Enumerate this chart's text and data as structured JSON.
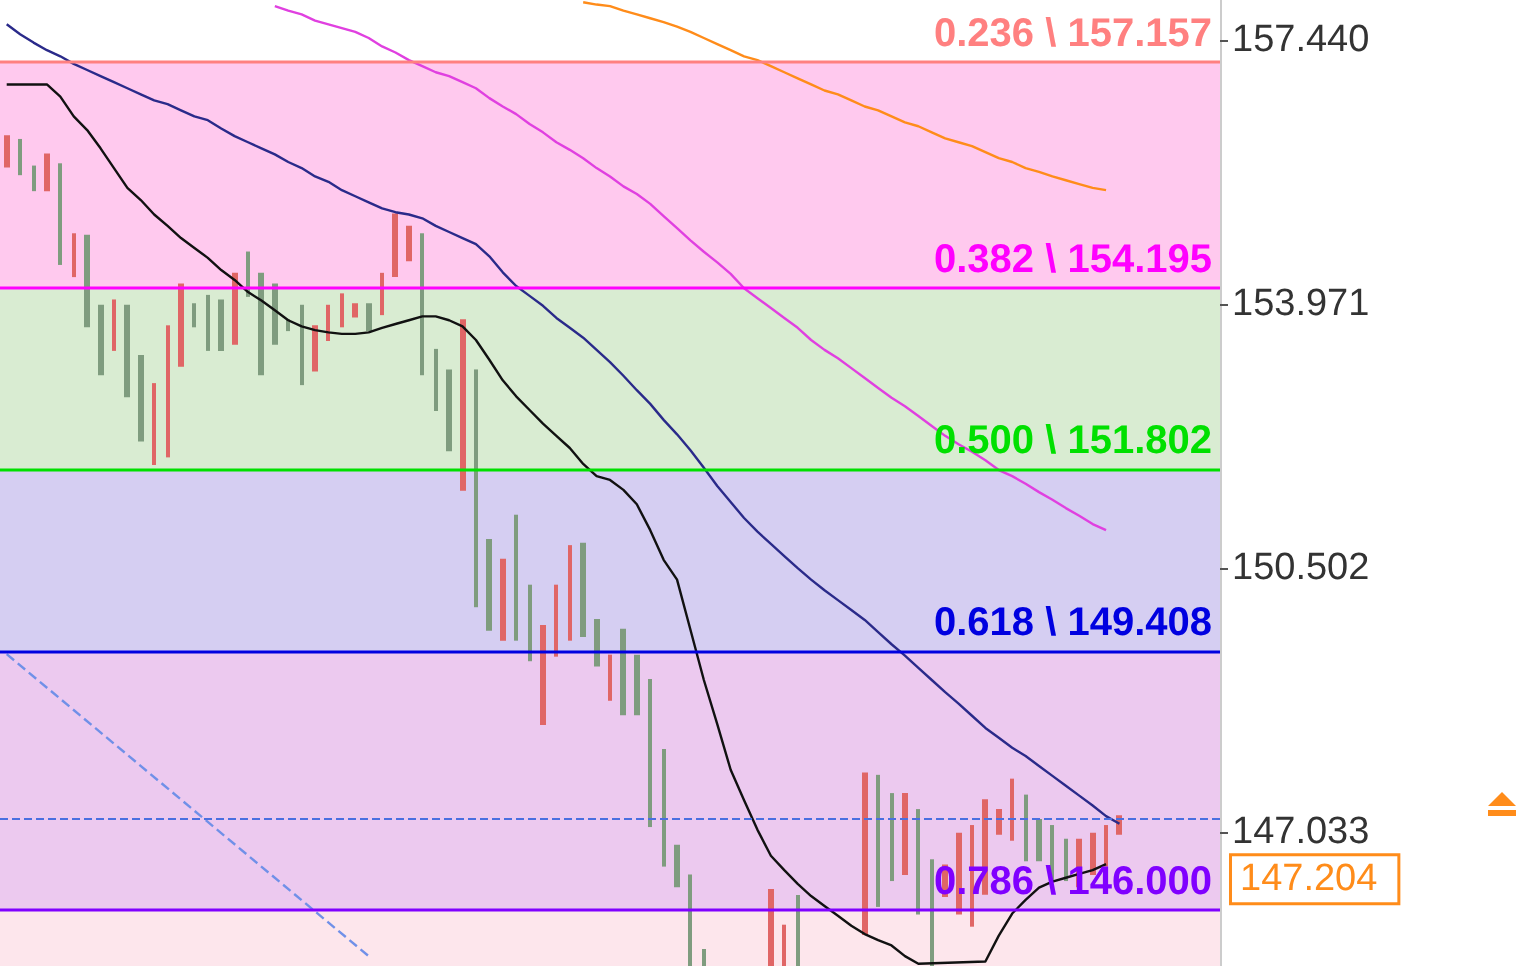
{
  "chart_data": {
    "type": "candlestick",
    "categories": [
      null,
      null,
      null,
      null,
      null,
      null,
      null,
      null,
      null,
      null,
      null,
      null,
      null,
      null,
      null,
      null,
      null,
      null,
      null,
      null,
      null,
      null,
      null,
      null,
      null,
      null,
      null,
      null,
      null,
      null,
      null,
      null,
      null,
      null,
      null,
      null,
      null,
      null,
      null,
      null,
      null,
      null,
      null,
      null,
      null,
      null,
      null,
      null,
      null,
      null,
      null,
      null,
      null,
      null,
      null,
      null,
      null,
      null,
      null,
      null,
      null,
      null,
      null,
      null,
      null,
      null,
      null,
      null,
      null,
      null,
      null,
      null,
      null,
      null,
      null,
      null,
      null,
      null,
      null,
      null,
      null,
      null,
      null,
      null,
      null,
      null,
      null,
      null,
      null,
      null,
      null
    ],
    "series": [
      {
        "ohlc": [
          [
            155.78,
            156.18,
            155.78,
            156.18
          ],
          [
            156.13,
            156.13,
            155.68,
            155.68
          ],
          [
            155.78,
            155.78,
            155.47,
            155.47
          ],
          [
            155.47,
            155.94,
            155.47,
            155.94
          ],
          [
            155.81,
            155.81,
            154.5,
            154.5
          ],
          [
            154.34,
            154.89,
            154.34,
            154.89
          ],
          [
            154.87,
            154.87,
            153.68,
            153.68
          ],
          [
            153.95,
            153.95,
            153.05,
            153.05
          ],
          [
            153.37,
            154.02,
            153.37,
            154.02
          ],
          [
            153.95,
            153.95,
            152.76,
            152.76
          ],
          [
            153.29,
            153.29,
            152.18,
            152.18
          ],
          [
            151.87,
            152.92,
            151.87,
            152.92
          ],
          [
            151.97,
            153.68,
            151.97,
            153.68
          ],
          [
            153.16,
            154.23,
            153.16,
            154.23
          ],
          [
            153.97,
            153.97,
            153.68,
            153.68
          ],
          [
            154.08,
            154.08,
            153.37,
            153.37
          ],
          [
            154.02,
            154.02,
            153.37,
            153.37
          ],
          [
            153.45,
            154.37,
            153.45,
            154.37
          ],
          [
            154.65,
            154.65,
            154.08,
            154.08
          ],
          [
            154.37,
            154.37,
            153.05,
            153.05
          ],
          [
            154.23,
            154.23,
            153.45,
            153.45
          ],
          [
            153.76,
            153.76,
            153.63,
            153.63
          ],
          [
            153.95,
            153.95,
            152.92,
            152.92
          ],
          [
            153.1,
            153.68,
            153.1,
            153.68
          ],
          [
            153.5,
            153.95,
            153.5,
            153.95
          ],
          [
            153.68,
            154.1,
            153.68,
            154.1
          ],
          [
            153.81,
            153.97,
            153.81,
            153.97
          ],
          [
            153.97,
            153.97,
            153.63,
            153.63
          ],
          [
            153.84,
            154.37,
            153.84,
            154.37
          ],
          [
            154.34,
            155.15,
            154.34,
            155.15
          ],
          [
            154.55,
            154.99,
            154.55,
            154.99
          ],
          [
            154.89,
            154.89,
            153.05,
            153.05
          ],
          [
            153.37,
            153.37,
            152.58,
            152.58
          ],
          [
            153.1,
            153.1,
            152.05,
            152.05
          ],
          [
            151.53,
            153.76,
            151.53,
            153.76
          ],
          [
            153.1,
            153.1,
            150.0,
            150.0
          ],
          [
            150.87,
            150.87,
            149.69,
            149.69
          ],
          [
            149.56,
            150.61,
            149.56,
            150.61
          ],
          [
            151.19,
            151.19,
            149.56,
            149.56
          ],
          [
            150.27,
            150.27,
            149.29,
            149.29
          ],
          [
            148.45,
            149.74,
            148.45,
            149.74
          ],
          [
            149.35,
            150.27,
            149.35,
            150.27
          ],
          [
            149.56,
            150.79,
            149.56,
            150.79
          ],
          [
            150.82,
            150.82,
            149.61,
            149.61
          ],
          [
            149.82,
            149.82,
            149.22,
            149.22
          ],
          [
            148.77,
            149.35,
            148.77,
            149.35
          ],
          [
            149.69,
            149.69,
            148.58,
            148.58
          ],
          [
            149.35,
            149.35,
            148.58,
            148.58
          ],
          [
            149.03,
            149.03,
            147.11,
            147.11
          ],
          [
            148.11,
            148.11,
            146.59,
            146.59
          ],
          [
            146.85,
            146.85,
            146.32,
            146.32
          ],
          [
            146.46,
            146.46,
            145.28,
            145.28
          ],
          [
            145.48,
            145.48,
            145.28,
            145.28
          ],
          null,
          null,
          null,
          null,
          [
            145.28,
            146.27,
            145.28,
            146.27
          ],
          [
            145.28,
            145.8,
            145.28,
            145.8
          ],
          [
            146.19,
            146.19,
            145.28,
            145.28
          ],
          null,
          null,
          null,
          null,
          [
            145.69,
            147.8,
            145.69,
            147.8
          ],
          [
            147.77,
            147.77,
            146.06,
            146.06
          ],
          [
            147.53,
            147.53,
            146.4,
            146.4
          ],
          [
            146.48,
            147.53,
            146.48,
            147.53
          ],
          [
            147.32,
            147.32,
            145.96,
            145.96
          ],
          [
            146.66,
            146.66,
            145.28,
            145.28
          ],
          [
            146.19,
            146.59,
            146.19,
            146.59
          ],
          [
            145.96,
            147.01,
            145.96,
            147.01
          ],
          [
            145.8,
            147.11,
            145.8,
            147.11
          ],
          [
            146.22,
            147.45,
            146.22,
            147.45
          ],
          [
            147.01,
            147.32,
            147.01,
            147.32
          ],
          [
            146.93,
            147.72,
            146.93,
            147.72
          ],
          [
            147.51,
            147.51,
            146.66,
            146.66
          ],
          [
            147.19,
            147.19,
            146.66,
            146.66
          ],
          [
            147.11,
            147.11,
            146.4,
            146.4
          ],
          [
            146.93,
            146.93,
            146.4,
            146.4
          ],
          [
            146.32,
            146.93,
            146.32,
            146.93
          ],
          [
            146.48,
            147.01,
            146.48,
            147.01
          ],
          [
            146.59,
            147.11,
            146.59,
            147.11
          ],
          [
            147.01,
            147.24,
            147.01,
            147.24
          ],
          null,
          null,
          null,
          null,
          null,
          null,
          null
        ],
        "colors": [
          "#e06666",
          "#7f9c7f",
          "#7f9c7f",
          "#e06666",
          "#7f9c7f",
          "#e06666",
          "#7f9c7f",
          "#7f9c7f",
          "#e06666",
          "#7f9c7f",
          "#7f9c7f",
          "#e06666",
          "#e06666",
          "#e06666",
          "#7f9c7f",
          "#7f9c7f",
          "#7f9c7f",
          "#e06666",
          "#7f9c7f",
          "#7f9c7f",
          "#7f9c7f",
          "#7f9c7f",
          "#7f9c7f",
          "#e06666",
          "#e06666",
          "#e06666",
          "#e06666",
          "#7f9c7f",
          "#e06666",
          "#e06666",
          "#e06666",
          "#7f9c7f",
          "#7f9c7f",
          "#7f9c7f",
          "#e06666",
          "#7f9c7f",
          "#7f9c7f",
          "#e06666",
          "#7f9c7f",
          "#7f9c7f",
          "#e06666",
          "#e06666",
          "#e06666",
          "#7f9c7f",
          "#7f9c7f",
          "#e06666",
          "#7f9c7f",
          "#7f9c7f",
          "#7f9c7f",
          "#7f9c7f",
          "#7f9c7f",
          "#7f9c7f",
          "#7f9c7f",
          null,
          null,
          null,
          null,
          "#e06666",
          "#e06666",
          "#7f9c7f",
          null,
          null,
          null,
          null,
          "#e06666",
          "#7f9c7f",
          "#7f9c7f",
          "#e06666",
          "#7f9c7f",
          "#7f9c7f",
          "#e06666",
          "#e06666",
          "#e06666",
          "#e06666",
          "#e06666",
          "#e06666",
          "#7f9c7f",
          "#7f9c7f",
          "#7f9c7f",
          "#7f9c7f",
          "#e06666",
          "#e06666",
          "#e06666",
          "#e06666",
          null,
          null,
          null,
          null,
          null,
          null,
          null
        ]
      },
      {
        "type": "line",
        "color": "#111111",
        "values": [
          156.86,
          156.86,
          156.86,
          156.86,
          156.7,
          156.44,
          156.26,
          156.02,
          155.76,
          155.5,
          155.34,
          155.15,
          155.0,
          154.84,
          154.71,
          154.58,
          154.42,
          154.29,
          154.13,
          154.02,
          153.89,
          153.76,
          153.68,
          153.63,
          153.6,
          153.58,
          153.58,
          153.6,
          153.66,
          153.71,
          153.76,
          153.81,
          153.81,
          153.76,
          153.68,
          153.5,
          153.24,
          152.97,
          152.76,
          152.58,
          152.4,
          152.24,
          152.08,
          151.87,
          151.71,
          151.66,
          151.53,
          151.34,
          151.0,
          150.61,
          150.35,
          149.69,
          149.03,
          148.45,
          147.85,
          147.45,
          147.06,
          146.72,
          146.53,
          146.35,
          146.19,
          146.06,
          145.93,
          145.8,
          145.69,
          145.61,
          145.54,
          145.4,
          145.3,
          null,
          null,
          null,
          null,
          145.33,
          145.67,
          145.96,
          146.14,
          146.3,
          146.38,
          146.43,
          146.48,
          146.53,
          146.61,
          null,
          null,
          null,
          null,
          null,
          null,
          null,
          null
        ]
      },
      {
        "type": "line",
        "color": "#2a2a8a",
        "values": [
          157.65,
          157.52,
          157.41,
          157.31,
          157.23,
          157.13,
          157.05,
          156.97,
          156.89,
          156.81,
          156.73,
          156.65,
          156.6,
          156.52,
          156.44,
          156.39,
          156.28,
          156.18,
          156.1,
          156.02,
          155.94,
          155.84,
          155.76,
          155.65,
          155.58,
          155.47,
          155.39,
          155.31,
          155.23,
          155.18,
          155.15,
          155.1,
          155.0,
          154.92,
          154.84,
          154.76,
          154.6,
          154.39,
          154.21,
          154.08,
          153.95,
          153.79,
          153.66,
          153.53,
          153.37,
          153.21,
          153.03,
          152.84,
          152.66,
          152.45,
          152.26,
          152.05,
          151.82,
          151.58,
          151.37,
          151.16,
          150.98,
          150.82,
          150.66,
          150.5,
          150.35,
          150.21,
          150.08,
          149.95,
          149.82,
          149.66,
          149.5,
          149.35,
          149.19,
          149.03,
          148.87,
          148.72,
          148.56,
          148.4,
          148.27,
          148.14,
          148.03,
          147.9,
          147.77,
          147.64,
          147.51,
          147.38,
          147.24,
          147.14,
          null,
          null,
          null,
          null,
          null,
          null,
          null
        ]
      },
      {
        "type": "line",
        "color": "#e040e0",
        "values": [
          null,
          null,
          null,
          null,
          null,
          null,
          null,
          null,
          null,
          null,
          null,
          null,
          null,
          null,
          null,
          null,
          null,
          null,
          null,
          null,
          157.89,
          157.83,
          157.78,
          157.7,
          157.65,
          157.6,
          157.55,
          157.47,
          157.36,
          157.28,
          157.18,
          157.1,
          157.02,
          156.97,
          156.89,
          156.81,
          156.68,
          156.57,
          156.47,
          156.34,
          156.23,
          156.1,
          156.0,
          155.89,
          155.76,
          155.65,
          155.52,
          155.42,
          155.29,
          155.13,
          154.97,
          154.81,
          154.66,
          154.52,
          154.37,
          154.18,
          154.05,
          153.92,
          153.79,
          153.66,
          153.5,
          153.37,
          153.26,
          153.13,
          153.0,
          152.87,
          152.74,
          152.63,
          152.5,
          152.37,
          152.24,
          152.13,
          152.03,
          151.92,
          151.79,
          151.71,
          151.61,
          151.5,
          151.4,
          151.29,
          151.19,
          151.08,
          151.0,
          null,
          null,
          null,
          null,
          null,
          null,
          null,
          null
        ]
      },
      {
        "type": "line",
        "color": "#ff8c1a",
        "values": [
          null,
          null,
          null,
          null,
          null,
          null,
          null,
          null,
          null,
          null,
          null,
          null,
          null,
          null,
          null,
          null,
          null,
          null,
          null,
          null,
          null,
          null,
          null,
          null,
          null,
          null,
          null,
          null,
          null,
          null,
          null,
          null,
          null,
          null,
          null,
          null,
          null,
          null,
          null,
          null,
          null,
          null,
          null,
          157.94,
          157.91,
          157.89,
          157.83,
          157.78,
          157.73,
          157.68,
          157.62,
          157.55,
          157.47,
          157.39,
          157.31,
          157.23,
          157.18,
          157.1,
          157.02,
          156.94,
          156.86,
          156.78,
          156.73,
          156.65,
          156.57,
          156.52,
          156.44,
          156.36,
          156.31,
          156.23,
          156.15,
          156.1,
          156.05,
          155.97,
          155.89,
          155.84,
          155.76,
          155.71,
          155.65,
          155.6,
          155.55,
          155.5,
          155.47,
          null,
          null,
          null,
          null,
          null,
          null,
          null,
          null
        ]
      },
      {
        "type": "line",
        "color": "#7090e8",
        "line_style": "dashed",
        "values": [
          149.37,
          null,
          null,
          null,
          null,
          null,
          null,
          null,
          null,
          null,
          null,
          null,
          null,
          null,
          null,
          null,
          null,
          null,
          null,
          null,
          null,
          null,
          null,
          null,
          null,
          null,
          null,
          145.4,
          null,
          null,
          null,
          null,
          null,
          null,
          null,
          null,
          null,
          null,
          null,
          null,
          null,
          null,
          null,
          null,
          null,
          null,
          null,
          null,
          null,
          null,
          null,
          null,
          null,
          null,
          null,
          null,
          null,
          null,
          null,
          null,
          null,
          null,
          null,
          null,
          null,
          null,
          null,
          null,
          null,
          null,
          null,
          null,
          null,
          null,
          null,
          null,
          null,
          null,
          null,
          null,
          null,
          null,
          null,
          null,
          null,
          null,
          null,
          null,
          null,
          null,
          null
        ]
      }
    ],
    "ylim": [
      145.27,
      157.97
    ],
    "yticks": [
      {
        "value": 157.44,
        "label": "157.440"
      },
      {
        "value": 153.971,
        "label": "153.971"
      },
      {
        "value": 150.502,
        "label": "150.502"
      },
      {
        "value": 147.033,
        "label": "147.033"
      }
    ],
    "bands": [
      {
        "axis": "y",
        "from": 154.195,
        "to": 157.157,
        "color": "#ffc9ee"
      },
      {
        "axis": "y",
        "from": 151.802,
        "to": 154.195,
        "color": "#d9ecd2"
      },
      {
        "axis": "y",
        "from": 149.408,
        "to": 151.802,
        "color": "#d5cef2"
      },
      {
        "axis": "y",
        "from": 146.0,
        "to": 149.408,
        "color": "#ecc9ef"
      },
      {
        "axis": "y",
        "from": 145.27,
        "to": 146.0,
        "color": "#fde6ec"
      }
    ],
    "ref_lines": [
      {
        "axis": "y",
        "value": 157.157,
        "label": "0.236 \\ 157.157",
        "color": "#ff8080"
      },
      {
        "axis": "y",
        "value": 154.195,
        "label": "0.382 \\ 154.195",
        "color": "#ff00ff"
      },
      {
        "axis": "y",
        "value": 151.802,
        "label": "0.500 \\ 151.802",
        "color": "#00e000"
      },
      {
        "axis": "y",
        "value": 149.408,
        "label": "0.618 \\ 149.408",
        "color": "#0000e0"
      },
      {
        "axis": "y",
        "value": 146.0,
        "label": "0.786 \\ 146.000",
        "color": "#8000ff"
      },
      {
        "axis": "y",
        "value": 147.204,
        "label": "147.204",
        "color": "#4a6fe0",
        "line_style": "dashed"
      }
    ],
    "line_style": "solid",
    "grid": false,
    "tick_labels": "y"
  }
}
